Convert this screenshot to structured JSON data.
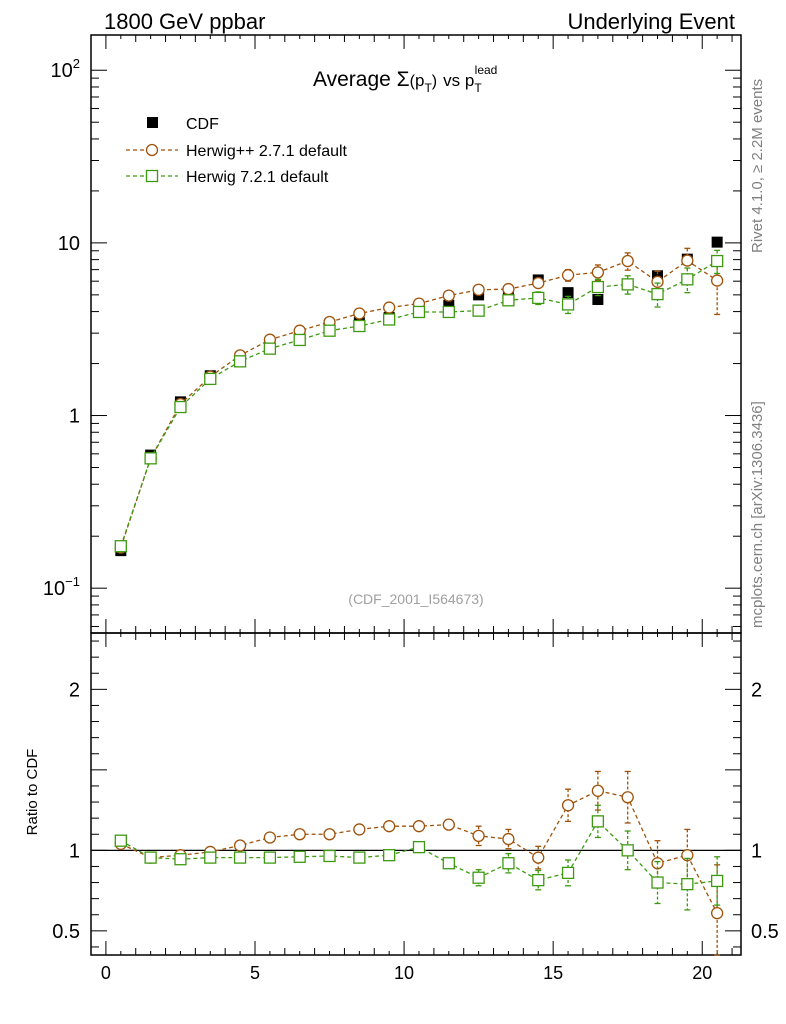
{
  "header": {
    "left": "1800 GeV ppbar",
    "right": "Underlying Event"
  },
  "title": {
    "prefix": "Average ",
    "sigma": "Σ",
    "p": "p",
    "T": "T",
    "mid": "vs ",
    "lead": "lead"
  },
  "side_labels": {
    "rivet": "Rivet 4.1.0, ≥ 2.2M events",
    "mcplots": "mcplots.cern.ch [arXiv:1306.3436]"
  },
  "analysis_id": "(CDF_2001_I564673)",
  "colors": {
    "cdf": "#000000",
    "herwigpp": "#a0520a",
    "herwig7": "#3d9a10",
    "frame": "#000000"
  },
  "chart_data": [
    {
      "type": "scatter",
      "panel": "main",
      "yscale": "log",
      "xlim": [
        -0.5,
        21.3
      ],
      "ylim": [
        0.055,
        160
      ],
      "ytick_labels": [
        {
          "value": 0.1,
          "base": "10",
          "exp": "−1"
        },
        {
          "value": 1,
          "base": "1",
          "exp": ""
        },
        {
          "value": 10,
          "base": "10",
          "exp": ""
        },
        {
          "value": 100,
          "base": "10",
          "exp": "2"
        }
      ],
      "legend_position": "top-left",
      "series": [
        {
          "name": "CDF",
          "marker": "filled-square",
          "x": [
            0.5,
            1.5,
            2.5,
            3.5,
            4.5,
            5.5,
            6.5,
            7.5,
            8.5,
            9.5,
            10.5,
            11.5,
            12.5,
            13.5,
            14.5,
            15.5,
            16.5,
            17.5,
            18.5,
            19.5,
            20.5
          ],
          "y": [
            0.165,
            0.59,
            1.2,
            1.7,
            2.15,
            2.55,
            2.85,
            3.2,
            3.45,
            3.7,
            3.95,
            4.35,
            5.0,
            5.1,
            6.1,
            5.15,
            4.7,
            5.75,
            6.45,
            8.05,
            10.1
          ]
        },
        {
          "name": "Herwig++ 2.7.1 default",
          "marker": "open-circle",
          "x": [
            0.5,
            1.5,
            2.5,
            3.5,
            4.5,
            5.5,
            6.5,
            7.5,
            8.5,
            9.5,
            10.5,
            11.5,
            12.5,
            13.5,
            14.5,
            15.5,
            16.5,
            17.5,
            18.5,
            19.5,
            20.5
          ],
          "y": [
            0.172,
            0.565,
            1.165,
            1.68,
            2.23,
            2.75,
            3.1,
            3.48,
            3.9,
            4.22,
            4.45,
            4.95,
            5.35,
            5.4,
            5.85,
            6.5,
            6.75,
            7.85,
            5.95,
            7.9,
            6.05
          ],
          "err": [
            0.005,
            0.012,
            0.02,
            0.03,
            0.04,
            0.05,
            0.06,
            0.07,
            0.08,
            0.09,
            0.1,
            0.12,
            0.3,
            0.3,
            0.35,
            0.5,
            0.7,
            0.9,
            0.9,
            1.4,
            2.2
          ]
        },
        {
          "name": "Herwig 7.2.1 default",
          "marker": "open-square",
          "x": [
            0.5,
            1.5,
            2.5,
            3.5,
            4.5,
            5.5,
            6.5,
            7.5,
            8.5,
            9.5,
            10.5,
            11.5,
            12.5,
            13.5,
            14.5,
            15.5,
            16.5,
            17.5,
            18.5,
            19.5,
            20.5
          ],
          "y": [
            0.175,
            0.565,
            1.12,
            1.63,
            2.06,
            2.44,
            2.74,
            3.1,
            3.3,
            3.6,
            3.98,
            3.98,
            4.05,
            4.65,
            4.8,
            4.4,
            5.55,
            5.75,
            5.05,
            6.15,
            7.85
          ],
          "err": [
            0.005,
            0.012,
            0.02,
            0.03,
            0.04,
            0.05,
            0.05,
            0.06,
            0.07,
            0.08,
            0.1,
            0.12,
            0.2,
            0.3,
            0.4,
            0.5,
            0.6,
            0.7,
            0.8,
            1.0,
            1.2
          ]
        }
      ]
    },
    {
      "type": "scatter",
      "panel": "ratio",
      "ylabel": "Ratio to CDF",
      "xlim": [
        -0.5,
        21.3
      ],
      "ylim": [
        0.35,
        2.35
      ],
      "xticks": [
        0,
        5,
        10,
        15,
        20
      ],
      "yticks_left": [
        0.5,
        1,
        2
      ],
      "yticks_right": [
        0.5,
        1,
        2
      ],
      "reference_line": 1,
      "series": [
        {
          "name": "Herwig++ 2.7.1 default",
          "x": [
            0.5,
            1.5,
            2.5,
            3.5,
            4.5,
            5.5,
            6.5,
            7.5,
            8.5,
            9.5,
            10.5,
            11.5,
            12.5,
            13.5,
            14.5,
            15.5,
            16.5,
            17.5,
            18.5,
            19.5,
            20.5
          ],
          "y": [
            1.04,
            0.955,
            0.97,
            0.99,
            1.03,
            1.08,
            1.1,
            1.1,
            1.13,
            1.15,
            1.15,
            1.16,
            1.09,
            1.07,
            0.955,
            1.28,
            1.37,
            1.33,
            0.92,
            0.97,
            0.61
          ],
          "err": [
            0.01,
            0.01,
            0.01,
            0.01,
            0.01,
            0.015,
            0.015,
            0.02,
            0.02,
            0.02,
            0.02,
            0.03,
            0.06,
            0.06,
            0.07,
            0.1,
            0.12,
            0.16,
            0.14,
            0.16,
            0.3
          ]
        },
        {
          "name": "Herwig 7.2.1 default",
          "x": [
            0.5,
            1.5,
            2.5,
            3.5,
            4.5,
            5.5,
            6.5,
            7.5,
            8.5,
            9.5,
            10.5,
            11.5,
            12.5,
            13.5,
            14.5,
            15.5,
            16.5,
            17.5,
            18.5,
            19.5,
            20.5
          ],
          "y": [
            1.06,
            0.955,
            0.945,
            0.955,
            0.955,
            0.955,
            0.96,
            0.965,
            0.955,
            0.97,
            1.02,
            0.92,
            0.83,
            0.92,
            0.815,
            0.86,
            1.18,
            1.0,
            0.8,
            0.79,
            0.81
          ],
          "err": [
            0.01,
            0.01,
            0.01,
            0.01,
            0.01,
            0.015,
            0.015,
            0.02,
            0.02,
            0.02,
            0.02,
            0.03,
            0.05,
            0.06,
            0.06,
            0.08,
            0.1,
            0.12,
            0.13,
            0.16,
            0.15
          ]
        }
      ]
    }
  ]
}
